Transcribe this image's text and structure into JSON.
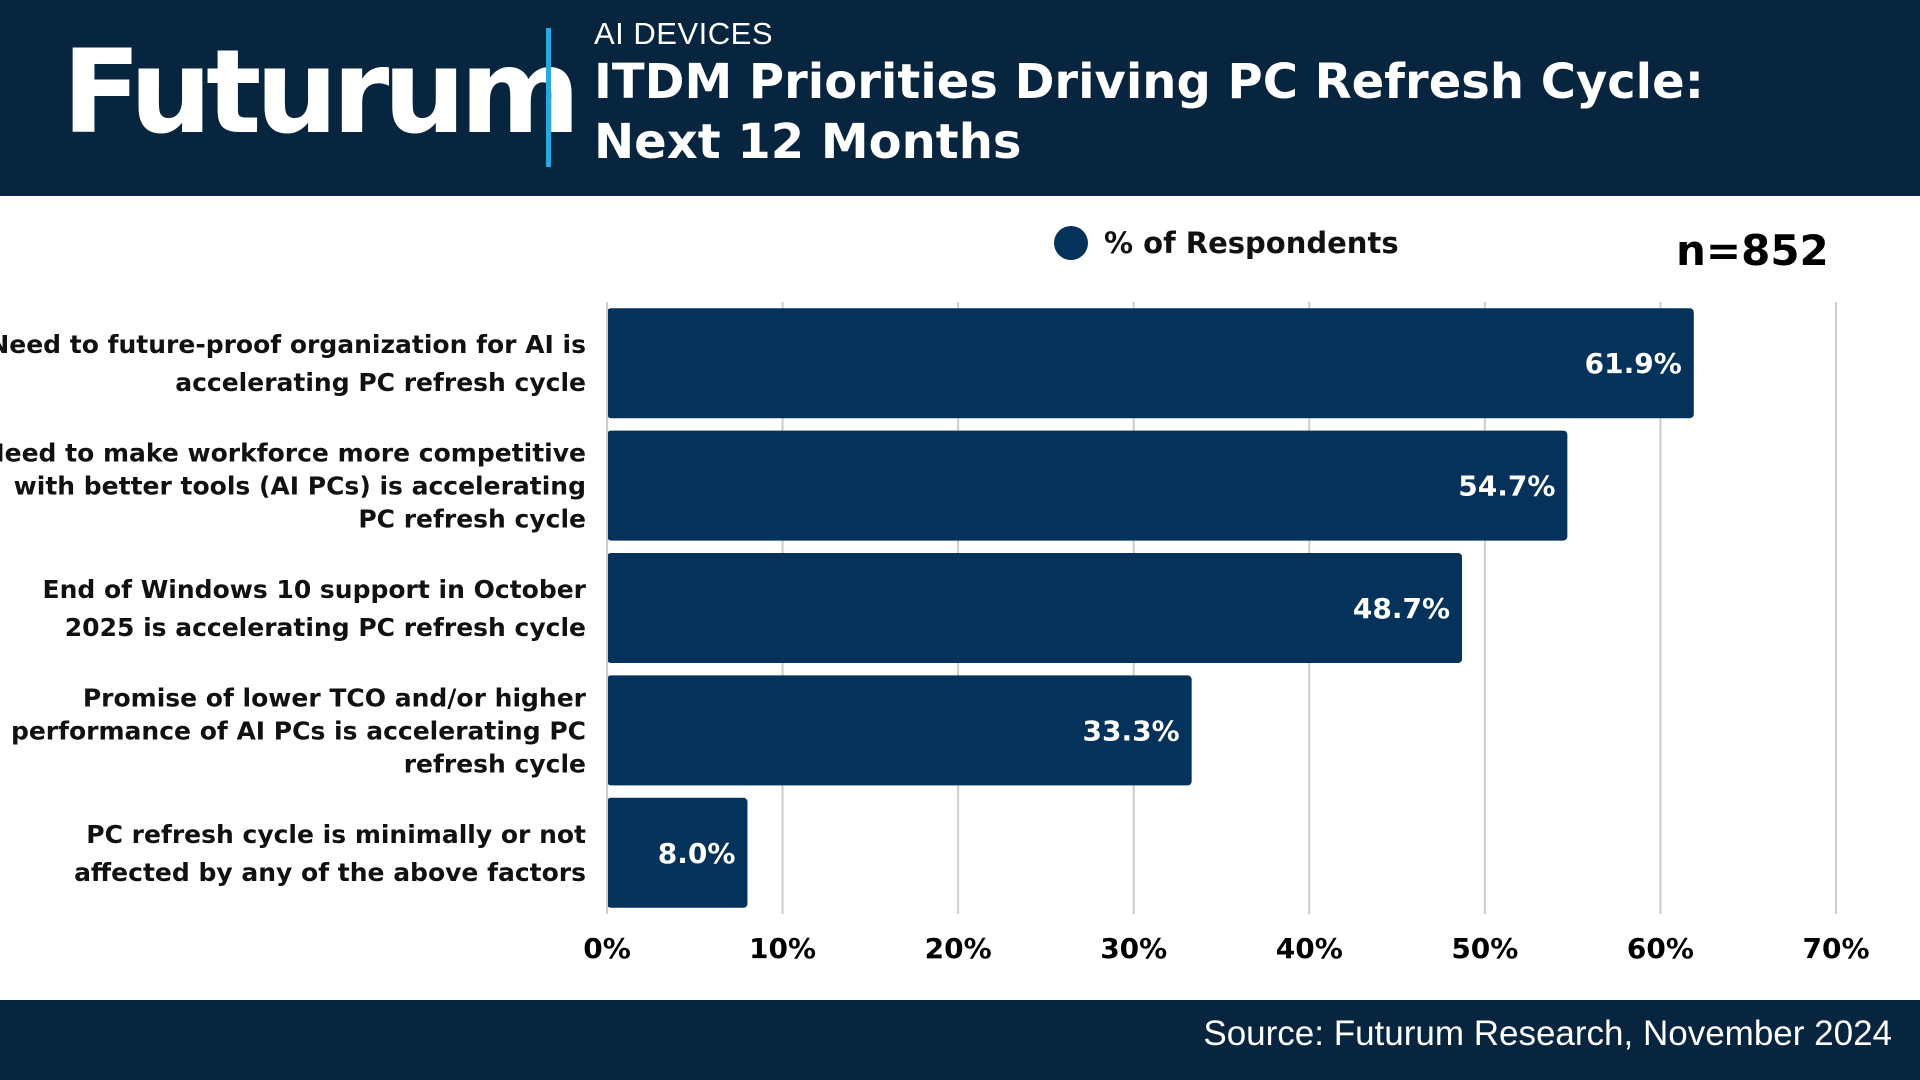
{
  "header": {
    "logo": "Futurum",
    "eyebrow": "AI DEVICES",
    "title_line1": "ITDM Priorities Driving PC Refresh Cycle:",
    "title_line2": "Next 12 Months"
  },
  "sample_size": "n=852",
  "footer": {
    "source": "Source: Futurum Research, November 2024"
  },
  "colors": {
    "bar": "#04325a",
    "header_bg": "#07253f",
    "accent": "#2aa7e0",
    "grid": "#cccccc"
  },
  "chart_data": {
    "type": "bar",
    "orientation": "horizontal",
    "title": "ITDM Priorities Driving PC Refresh Cycle: Next 12 Months",
    "categories": [
      [
        "Need to future-proof organization for AI is",
        "accelerating PC refresh cycle"
      ],
      [
        "Need to make workforce more competitive",
        "with better tools (AI PCs) is accelerating",
        "PC refresh cycle"
      ],
      [
        "End of Windows 10 support in October",
        "2025 is accelerating PC refresh cycle"
      ],
      [
        "Promise of lower TCO and/or higher",
        "performance of AI PCs is accelerating PC",
        "refresh cycle"
      ],
      [
        "PC refresh cycle is minimally or not",
        "affected by any of the above factors"
      ]
    ],
    "series": [
      {
        "name": "% of Respondents",
        "values": [
          61.9,
          54.7,
          48.7,
          33.3,
          8.0
        ]
      }
    ],
    "value_labels": [
      "61.9%",
      "54.7%",
      "48.7%",
      "33.3%",
      "8.0%"
    ],
    "xlim": [
      0,
      70
    ],
    "xticks": [
      0,
      10,
      20,
      30,
      40,
      50,
      60,
      70
    ],
    "xtick_labels": [
      "0%",
      "10%",
      "20%",
      "30%",
      "40%",
      "50%",
      "60%",
      "70%"
    ],
    "xlabel": "",
    "ylabel": "",
    "grid": true,
    "legend_position": "top-center"
  }
}
